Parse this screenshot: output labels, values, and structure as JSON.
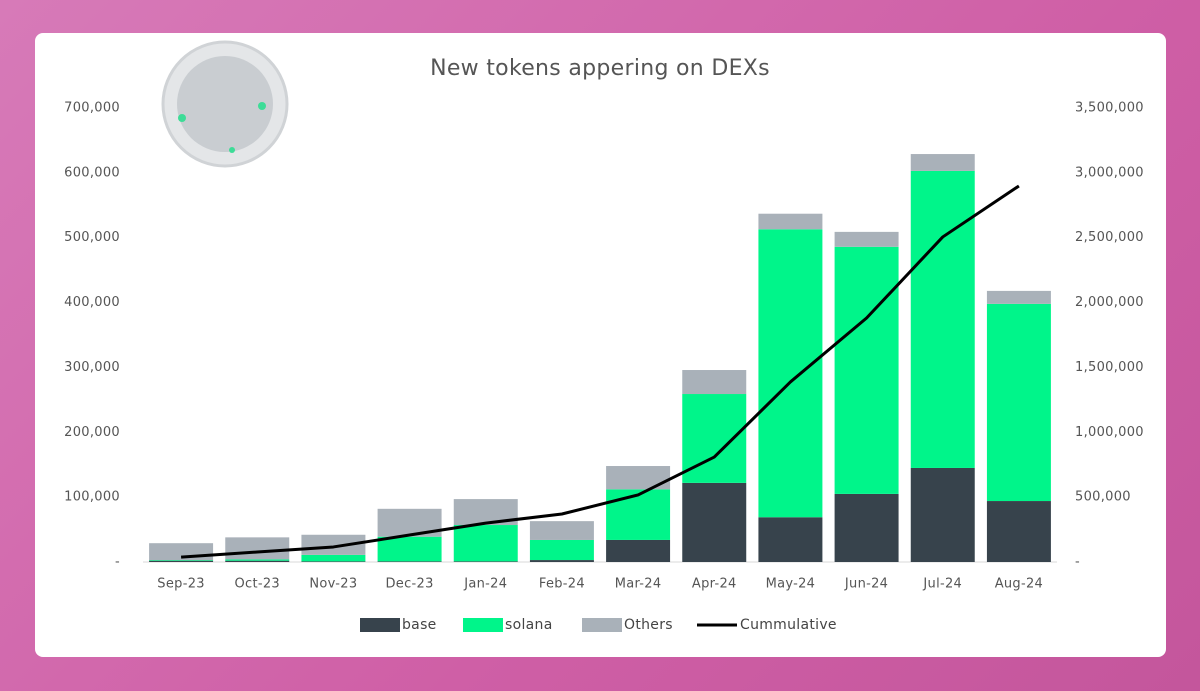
{
  "chart_data": {
    "type": "bar",
    "stacked": true,
    "title": "New tokens appering on DEXs",
    "categories": [
      "Sep-23",
      "Oct-23",
      "Nov-23",
      "Dec-23",
      "Jan-24",
      "Feb-24",
      "Mar-24",
      "Apr-24",
      "May-24",
      "Jun-24",
      "Jul-24",
      "Aug-24"
    ],
    "series": [
      {
        "name": "base",
        "color": "#37434c",
        "values": [
          2000,
          2000,
          1000,
          1000,
          1000,
          3000,
          34000,
          122000,
          69000,
          105000,
          145000,
          94000
        ]
      },
      {
        "name": "solana",
        "color": "#00f58a",
        "values": [
          1000,
          2000,
          10000,
          38000,
          56000,
          31000,
          78000,
          137000,
          444000,
          381000,
          458000,
          304000
        ]
      },
      {
        "name": "Others",
        "color": "#a9b1b9",
        "values": [
          26000,
          34000,
          31000,
          43000,
          40000,
          29000,
          36000,
          37000,
          24000,
          23000,
          26000,
          20000
        ]
      },
      {
        "name": "Cummulative",
        "color": "#000000",
        "axis": "y2",
        "values": [
          38000,
          77000,
          116000,
          208000,
          300000,
          370000,
          517000,
          809000,
          1388000,
          1881000,
          2506000,
          2899000
        ]
      }
    ],
    "ylim": [
      0,
      700000
    ],
    "yticks": [
      {
        "value": 0,
        "label": "-"
      },
      {
        "value": 100000,
        "label": "100,000"
      },
      {
        "value": 200000,
        "label": "200,000"
      },
      {
        "value": 300000,
        "label": "300,000"
      },
      {
        "value": 400000,
        "label": "400,000"
      },
      {
        "value": 500000,
        "label": "500,000"
      },
      {
        "value": 600000,
        "label": "600,000"
      },
      {
        "value": 700000,
        "label": "700,000"
      }
    ],
    "y2lim": [
      0,
      3500000
    ],
    "y2ticks": [
      {
        "value": 0,
        "label": "-"
      },
      {
        "value": 500000,
        "label": "500,000"
      },
      {
        "value": 1000000,
        "label": "1,000,000"
      },
      {
        "value": 1500000,
        "label": "1,500,000"
      },
      {
        "value": 2000000,
        "label": "2,000,000"
      },
      {
        "value": 2500000,
        "label": "2,500,000"
      },
      {
        "value": 3000000,
        "label": "3,000,000"
      },
      {
        "value": 3500000,
        "label": "3,500,000"
      }
    ],
    "grid": false
  }
}
